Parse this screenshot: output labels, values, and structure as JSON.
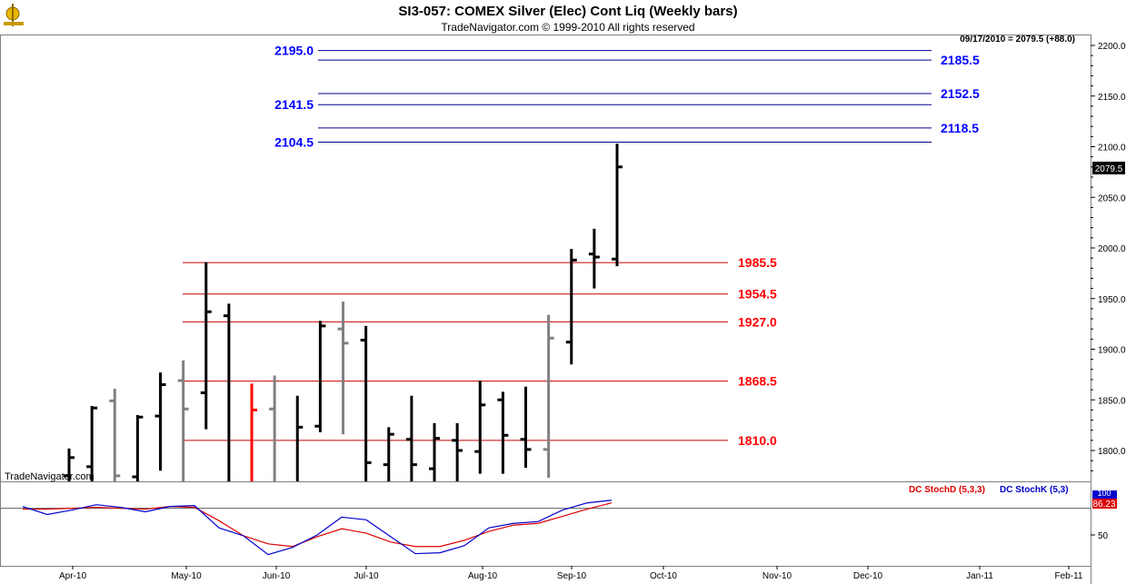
{
  "header": {
    "title": "SI3-057:  COMEX Silver (Elec) Cont Liq  (Weekly bars)",
    "copyright": "TradeNavigator.com © 1999-2010 All rights reserved",
    "last_quote": "09/17/2010 = 2079.5 (+88.0)",
    "watermark": "TradeNavigator.com"
  },
  "colors": {
    "background": "#ffffff",
    "bar_up": "#000000",
    "bar_neutral": "#808080",
    "bar_down": "#ff0000",
    "resistance_line": "#00008b",
    "resistance_label": "#0000ff",
    "support_line": "#cc0000",
    "support_label": "#ff0000",
    "stoch_d": "#dd0000",
    "stoch_k": "#0000cc"
  },
  "chart_data": [
    {
      "type": "ohlc",
      "title": "SI3-057:  COMEX Silver (Elec) Cont Liq  (Weekly bars)",
      "ylim": [
        1770,
        2215
      ],
      "y_ticks": [
        1800,
        1850,
        1900,
        1950,
        2000,
        2050,
        2100,
        2150,
        2200
      ],
      "y_tick_labels": [
        "1800.0",
        "1850.0",
        "1900.0",
        "1950.0",
        "2000.0",
        "2050.0",
        "2100.0",
        "2150.0",
        "2200.0"
      ],
      "last_price_label": "2079.5",
      "last_price": 2079.5,
      "x_labels": [
        "Apr-10",
        "May-10",
        "Jun-10",
        "Jul-10",
        "Aug-10",
        "Sep-10",
        "Oct-10",
        "Nov-10",
        "Dec-10",
        "Jan-11",
        "Feb-11"
      ],
      "grid": true,
      "bars": [
        {
          "w": 0,
          "o": 1775,
          "h": 1802,
          "l": 1765,
          "c": 1793,
          "col": "black"
        },
        {
          "w": 1,
          "o": 1784,
          "h": 1844,
          "l": 1765,
          "c": 1842,
          "col": "black"
        },
        {
          "w": 2,
          "o": 1849,
          "h": 1861,
          "l": 1765,
          "c": 1775,
          "col": "gray"
        },
        {
          "w": 3,
          "o": 1774,
          "h": 1835,
          "l": 1765,
          "c": 1833,
          "col": "black"
        },
        {
          "w": 4,
          "o": 1834,
          "h": 1877,
          "l": 1780,
          "c": 1865,
          "col": "black"
        },
        {
          "w": 5,
          "o": 1869,
          "h": 1889,
          "l": 1765,
          "c": 1841,
          "col": "gray"
        },
        {
          "w": 6,
          "o": 1857,
          "h": 1986,
          "l": 1821,
          "c": 1937,
          "col": "black"
        },
        {
          "w": 7,
          "o": 1933,
          "h": 1945,
          "l": 1765,
          "c": 1765,
          "col": "black"
        },
        {
          "w": 8,
          "o": 1765,
          "h": 1866,
          "l": 1765,
          "c": 1840,
          "col": "red"
        },
        {
          "w": 9,
          "o": 1841,
          "h": 1874,
          "l": 1765,
          "c": 1765,
          "col": "gray"
        },
        {
          "w": 10,
          "o": 1765,
          "h": 1854,
          "l": 1765,
          "c": 1823,
          "col": "black"
        },
        {
          "w": 11,
          "o": 1824,
          "h": 1928,
          "l": 1818,
          "c": 1923,
          "col": "black"
        },
        {
          "w": 12,
          "o": 1920,
          "h": 1947,
          "l": 1816,
          "c": 1906,
          "col": "gray"
        },
        {
          "w": 13,
          "o": 1909,
          "h": 1923,
          "l": 1765,
          "c": 1788,
          "col": "black"
        },
        {
          "w": 14,
          "o": 1786,
          "h": 1823,
          "l": 1765,
          "c": 1816,
          "col": "black"
        },
        {
          "w": 15,
          "o": 1811,
          "h": 1854,
          "l": 1765,
          "c": 1786,
          "col": "black"
        },
        {
          "w": 16,
          "o": 1782,
          "h": 1827,
          "l": 1765,
          "c": 1812,
          "col": "black"
        },
        {
          "w": 17,
          "o": 1810,
          "h": 1827,
          "l": 1765,
          "c": 1800,
          "col": "black"
        },
        {
          "w": 18,
          "o": 1799,
          "h": 1869,
          "l": 1777,
          "c": 1845,
          "col": "black"
        },
        {
          "w": 19,
          "o": 1850,
          "h": 1858,
          "l": 1777,
          "c": 1815,
          "col": "black"
        },
        {
          "w": 20,
          "o": 1811,
          "h": 1863,
          "l": 1783,
          "c": 1801,
          "col": "black"
        },
        {
          "w": 21,
          "o": 1801,
          "h": 1934,
          "l": 1773,
          "c": 1911,
          "col": "gray"
        },
        {
          "w": 22,
          "o": 1907,
          "h": 1999,
          "l": 1885,
          "c": 1988,
          "col": "black"
        },
        {
          "w": 23,
          "o": 1994,
          "h": 2019,
          "l": 1960,
          "c": 1991,
          "col": "black"
        },
        {
          "w": 24,
          "o": 1989,
          "h": 2103,
          "l": 1982,
          "c": 2080,
          "col": "black"
        }
      ],
      "levels": [
        {
          "value": 2195.0,
          "label": "2195.0",
          "side": "left",
          "group": "resistance"
        },
        {
          "value": 2185.5,
          "label": "2185.5",
          "side": "right",
          "group": "resistance"
        },
        {
          "value": 2152.5,
          "label": "2152.5",
          "side": "right",
          "group": "resistance"
        },
        {
          "value": 2141.5,
          "label": "2141.5",
          "side": "left",
          "group": "resistance"
        },
        {
          "value": 2118.5,
          "label": "2118.5",
          "side": "right",
          "group": "resistance"
        },
        {
          "value": 2104.5,
          "label": "2104.5",
          "side": "left",
          "group": "resistance"
        },
        {
          "value": 1985.5,
          "label": "1985.5",
          "side": "right",
          "group": "support"
        },
        {
          "value": 1954.5,
          "label": "1954.5",
          "side": "right",
          "group": "support"
        },
        {
          "value": 1927.0,
          "label": "1927.0",
          "side": "right",
          "group": "support"
        },
        {
          "value": 1868.5,
          "label": "1868.5",
          "side": "right",
          "group": "support"
        },
        {
          "value": 1810.0,
          "label": "1810.0",
          "side": "right",
          "group": "support"
        }
      ]
    },
    {
      "type": "line",
      "ylim": [
        20,
        105
      ],
      "y_ticks": [
        50
      ],
      "y_tick_labels": [
        "50"
      ],
      "reference_line": 80,
      "legend": [
        "DC StochD (5,3,3)",
        "DC StochK (5,3)"
      ],
      "last_value_label": "86.23",
      "top_tick_label": "100",
      "series": [
        {
          "name": "DC StochD (5,3,3)",
          "color": "#dd0000",
          "values": [
            79,
            79,
            80,
            81,
            80,
            79,
            82,
            81,
            66,
            49,
            40,
            37,
            48,
            57,
            52,
            42,
            37,
            37,
            44,
            54,
            61,
            63,
            71,
            79,
            86
          ]
        },
        {
          "name": "DC StochK (5,3)",
          "color": "#0000cc",
          "values": [
            82,
            73,
            78,
            84,
            81,
            76,
            82,
            83,
            58,
            49,
            28,
            36,
            50,
            70,
            67,
            48,
            29,
            30,
            38,
            58,
            63,
            65,
            78,
            86,
            89
          ]
        }
      ]
    }
  ]
}
